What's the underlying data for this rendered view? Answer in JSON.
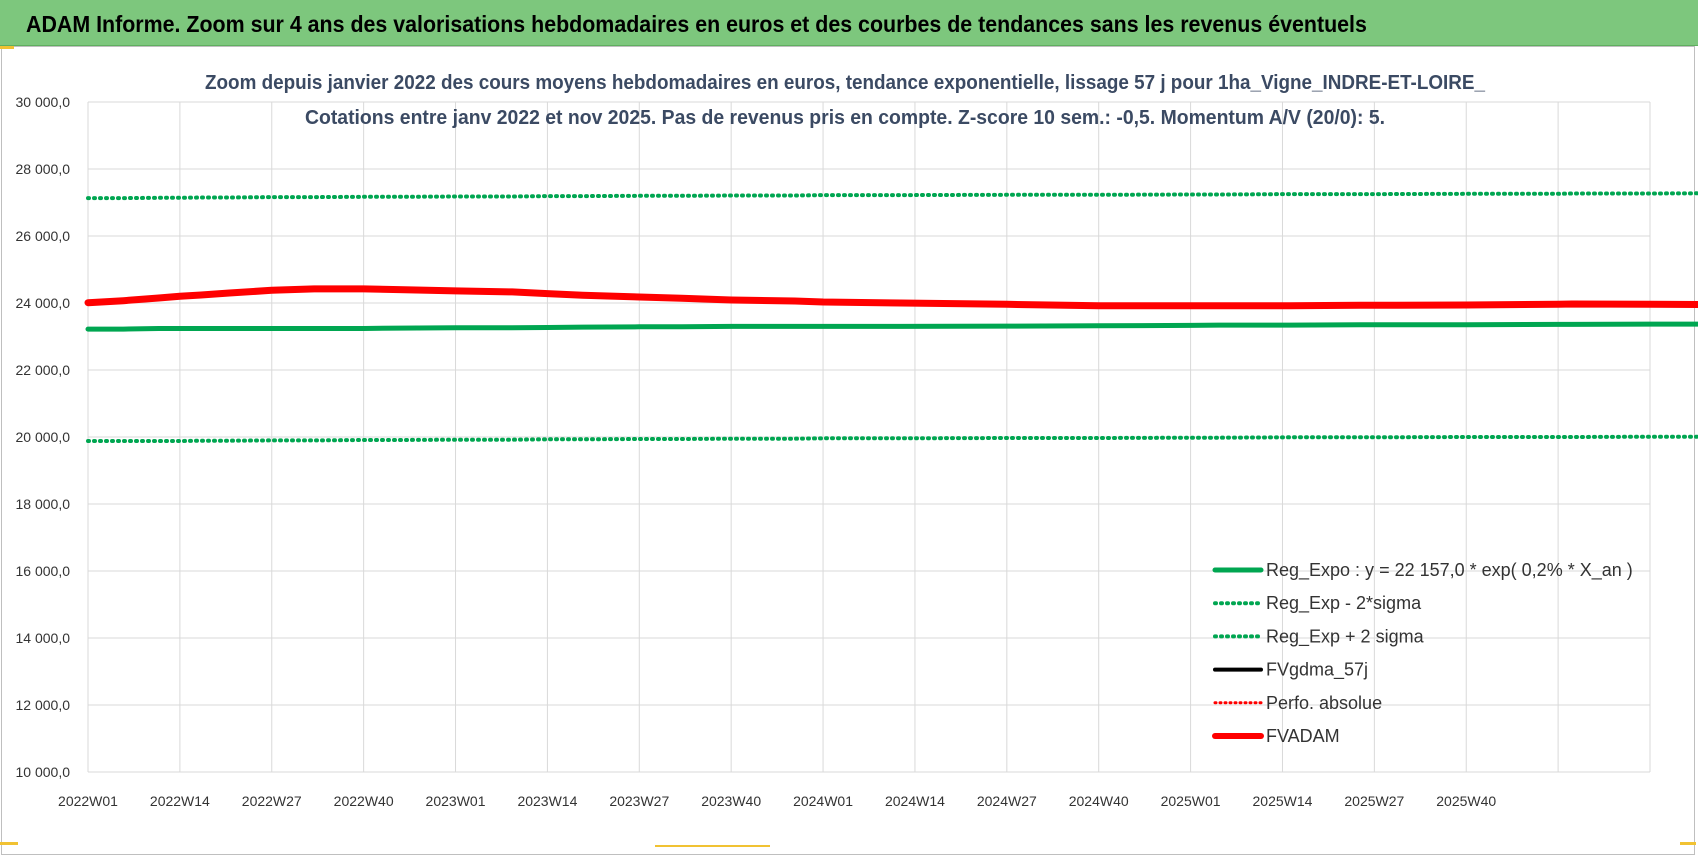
{
  "banner": {
    "title": "ADAM Informe. Zoom sur 4 ans des valorisations hebdomadaires en euros et des courbes de tendances sans les revenus éventuels"
  },
  "colors": {
    "banner": "#7dc77d",
    "reg_expo": "#00a651",
    "fvgdma": "#000000",
    "perfo": "#ff0000",
    "fvadam": "#ff0000",
    "grid": "#d9d9d9"
  },
  "chart_data": {
    "type": "line",
    "title": "Zoom depuis janvier 2022 des cours moyens hebdomadaires en euros, tendance exponentielle, lissage 57 j pour 1ha_Vigne_INDRE-ET-LOIRE_",
    "subtitle": "Cotations entre janv 2022 et nov 2025. Pas de revenus pris en compte. Z-score 10 sem.: -0,5. Momentum A/V (20/0): 5.",
    "xlabel": "",
    "ylabel": "",
    "ylim": [
      10000,
      30000
    ],
    "grid": true,
    "legend_position": "bottom-right",
    "x_tick_labels": [
      "2022W01",
      "2022W14",
      "2022W27",
      "2022W40",
      "2023W01",
      "2023W14",
      "2023W27",
      "2023W40",
      "2024W01",
      "2024W14",
      "2024W27",
      "2024W40",
      "2025W01",
      "2025W14",
      "2025W27",
      "2025W40"
    ],
    "y_tick_labels": [
      "10 000,0",
      "12 000,0",
      "14 000,0",
      "16 000,0",
      "18 000,0",
      "20 000,0",
      "22 000,0",
      "24 000,0",
      "26 000,0",
      "28 000,0",
      "30 000,0"
    ],
    "x_week_index": [
      0,
      5,
      10,
      13,
      16,
      20,
      26,
      32,
      39,
      44,
      52,
      60,
      65,
      70,
      78,
      84,
      91,
      100,
      104,
      115,
      130,
      143,
      156,
      160,
      170,
      180,
      182,
      195,
      208,
      210,
      221,
      234,
      247,
      256,
      260,
      270,
      280,
      290,
      300,
      310,
      322
    ],
    "series": [
      {
        "name": "Reg_Expo : y = 22 157,0 * exp( 0,2% *  X_an )",
        "style": "solid",
        "values": [
          23220,
          23220,
          23240,
          23240,
          23240,
          23240,
          23240,
          23240,
          23240,
          23250,
          23260,
          23260,
          23270,
          23280,
          23290,
          23290,
          23300,
          23300,
          23300,
          23300,
          23310,
          23320,
          23330,
          23340,
          23340,
          23350,
          23350,
          23350,
          23360,
          23360,
          23370,
          23370,
          23380,
          23380,
          23380,
          23390,
          23390,
          23400,
          23400,
          23410,
          23420
        ]
      },
      {
        "name": "Reg_Exp - 2*sigma",
        "style": "dotted",
        "values": [
          19880,
          19880,
          19880,
          19880,
          19890,
          19890,
          19900,
          19900,
          19910,
          19910,
          19920,
          19920,
          19930,
          19930,
          19940,
          19940,
          19950,
          19950,
          19960,
          19960,
          19970,
          19970,
          19980,
          19980,
          19990,
          19990,
          19990,
          20000,
          20000,
          20000,
          20010,
          20010,
          20020,
          20020,
          20020,
          20030,
          20030,
          20040,
          20040,
          20050,
          20050
        ]
      },
      {
        "name": "Reg_Exp + 2 sigma",
        "style": "dotted",
        "values": [
          27130,
          27130,
          27140,
          27140,
          27150,
          27150,
          27160,
          27160,
          27170,
          27170,
          27180,
          27180,
          27190,
          27190,
          27200,
          27200,
          27210,
          27210,
          27220,
          27220,
          27230,
          27230,
          27240,
          27240,
          27250,
          27250,
          27250,
          27260,
          27260,
          27270,
          27270,
          27280,
          27280,
          27290,
          27290,
          27300,
          27300,
          27310,
          27320,
          27330,
          27340
        ]
      },
      {
        "name": "FVgdma_57j",
        "style": "solid",
        "values": [
          24010,
          24070,
          24150,
          24200,
          24240,
          24300,
          24380,
          24420,
          24420,
          24400,
          24360,
          24330,
          24280,
          24230,
          24180,
          24140,
          24090,
          24060,
          24030,
          24000,
          23960,
          23920,
          23920,
          23920,
          23920,
          23930,
          23930,
          23940,
          23960,
          23970,
          23960,
          23950,
          23930,
          23920,
          23910,
          23870,
          23820,
          23790,
          23780,
          23770,
          23760
        ]
      },
      {
        "name": "Perfo. absolue",
        "style": "dotted",
        "values": []
      },
      {
        "name": "FVADAM",
        "style": "solid",
        "values": [
          24010,
          24070,
          24150,
          24200,
          24240,
          24300,
          24380,
          24420,
          24420,
          24400,
          24360,
          24330,
          24280,
          24230,
          24180,
          24140,
          24090,
          24060,
          24030,
          24000,
          23960,
          23920,
          23920,
          23920,
          23920,
          23930,
          23930,
          23940,
          23960,
          23970,
          23960,
          23950,
          23930,
          23920,
          23910,
          23870,
          23820,
          23790,
          23780,
          23770,
          23760
        ]
      }
    ]
  }
}
